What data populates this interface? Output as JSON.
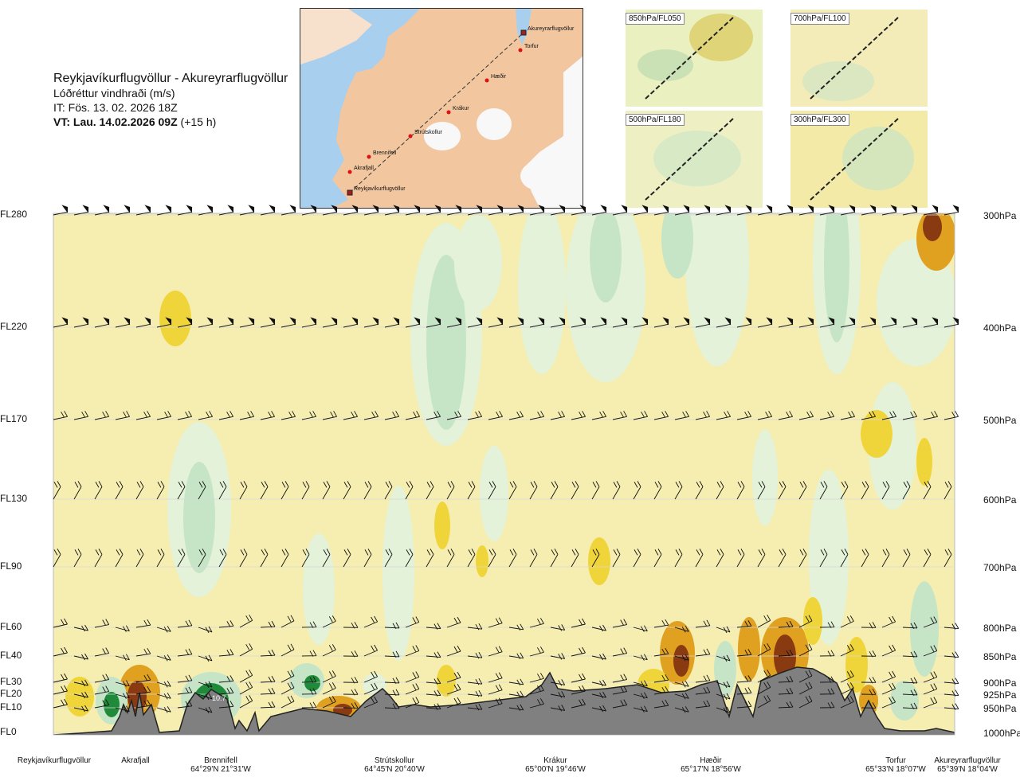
{
  "header": {
    "route": "Reykjavíkurflugvöllur - Akureyrarflugvöllur",
    "quantity": "Lóðréttur vindhraði (m/s)",
    "it": "IT: Fös. 13. 02. 2026 18Z",
    "vt_bold": "VT: Lau. 14.02.2026 09Z",
    "vt_rest": " (+15 h)"
  },
  "map": {
    "points": [
      {
        "label": "Akureyrarflugvöllur"
      },
      {
        "label": "Torfur"
      },
      {
        "label": "Hæðir"
      },
      {
        "label": "Krákur"
      },
      {
        "label": "Strútskollur"
      },
      {
        "label": "Brennifell"
      },
      {
        "label": "Akrafjall"
      },
      {
        "label": "Reykjavíkurflugvöllur"
      }
    ]
  },
  "minimaps": [
    {
      "label": "850hPa/FL050"
    },
    {
      "label": "700hPa/FL100"
    },
    {
      "label": "500hPa/FL180"
    },
    {
      "label": "300hPa/FL300"
    }
  ],
  "chart_data": {
    "type": "heatmap",
    "title": "Lóðréttur vindhraði (m/s)",
    "flight_levels": [
      "FL280",
      "FL220",
      "FL170",
      "FL130",
      "FL90",
      "FL60",
      "FL40",
      "FL30",
      "FL20",
      "FL10",
      "FL0"
    ],
    "pressure_levels": [
      "300hPa",
      "400hPa",
      "500hPa",
      "600hPa",
      "700hPa",
      "800hPa",
      "850hPa",
      "900hPa",
      "925hPa",
      "950hPa",
      "1000hPa"
    ],
    "pressure_values_hpa": [
      300,
      400,
      500,
      600,
      700,
      800,
      850,
      900,
      925,
      950,
      1000
    ],
    "locations": [
      {
        "name": "Reykjavíkurflugvöllur",
        "coord": ""
      },
      {
        "name": "Akrafjall",
        "coord": ""
      },
      {
        "name": "Brennifell",
        "coord": "64°29'N 21°31'W"
      },
      {
        "name": "Strútskollur",
        "coord": "64°45'N 20°40'W"
      },
      {
        "name": "Krákur",
        "coord": "65°00'N 19°46'W"
      },
      {
        "name": "Hæðir",
        "coord": "65°17'N 18°56'W"
      },
      {
        "name": "Torfur",
        "coord": "65°33'N 18°07'W"
      },
      {
        "name": "Akureyrarflugvöllur",
        "coord": "65°39'N 18°04'W"
      }
    ],
    "annotation": "10.7",
    "colors": {
      "background": "#f6eeb0",
      "down_weak": "#e3f2d8",
      "down_mid": "#c6e5c6",
      "down_strong": "#a5d1a5",
      "down_max": "#1f8a3a",
      "up_weak": "#fbf7cf",
      "up_mid": "#efd53a",
      "up_strong": "#e0a020",
      "up_max": "#8a3a10",
      "terrain": "#808080"
    }
  }
}
